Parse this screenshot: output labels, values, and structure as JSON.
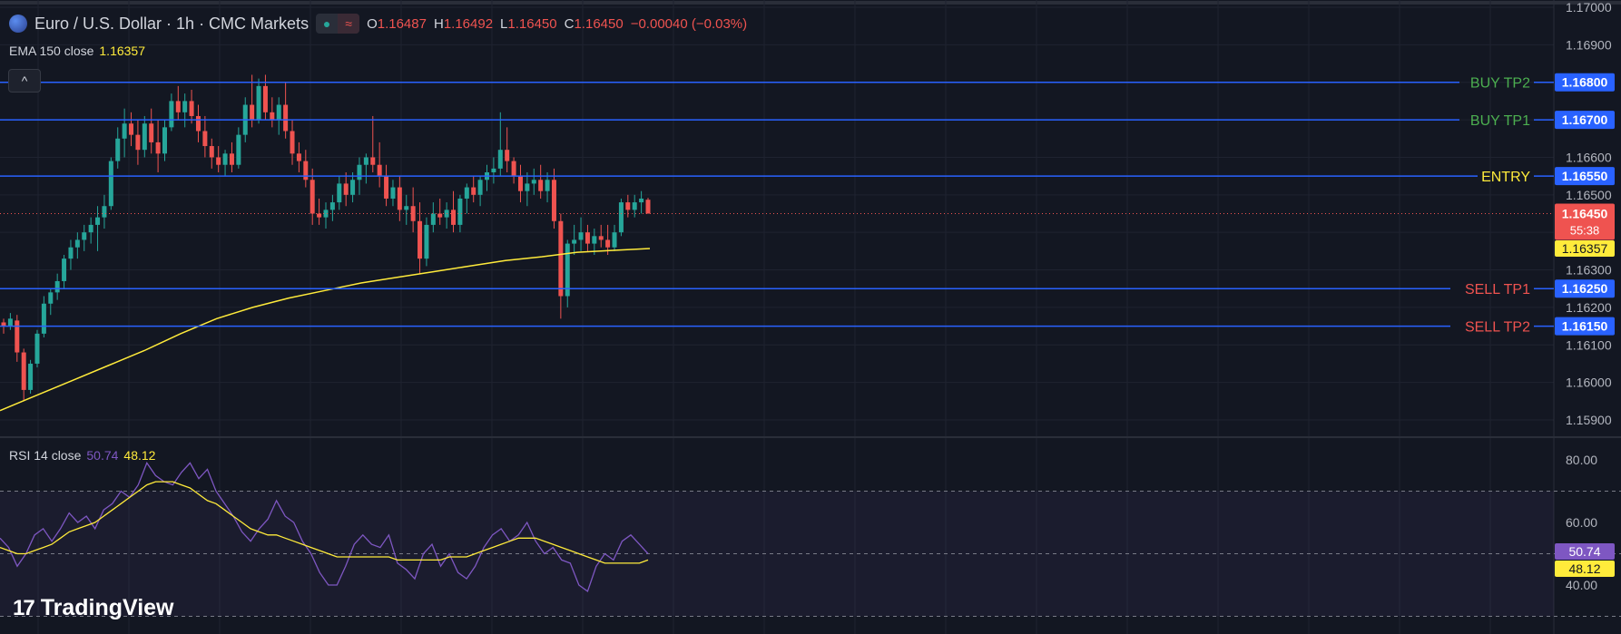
{
  "header": {
    "title": "Euro / U.S. Dollar · 1h · CMC Markets",
    "open_label": "O",
    "open": "1.16487",
    "high_label": "H",
    "high": "1.16492",
    "low_label": "L",
    "low": "1.16450",
    "close_label": "C",
    "close": "1.16450",
    "change": "−0.00040 (−0.03%)"
  },
  "indicators": {
    "ema_label": "EMA 150 close",
    "ema_value": "1.16357",
    "rsi_label": "RSI 14 close",
    "rsi_value": "50.74",
    "rsi_ma_value": "48.12"
  },
  "branding": {
    "logo_text": "TradingView"
  },
  "colors": {
    "background": "#131722",
    "grid": "#1f2330",
    "up": "#26a69a",
    "down": "#ef5350",
    "level_line": "#2962ff",
    "ema": "#ffeb3b",
    "rsi": "#7e57c2",
    "text": "#d1d4dc"
  },
  "chart_data": [
    {
      "type": "candlestick",
      "symbol": "Euro / U.S. Dollar",
      "timeframe": "1h",
      "ylim": [
        1.1585,
        1.17
      ],
      "y_ticks": [
        "1.17000",
        "1.16900",
        "1.16800",
        "1.16700",
        "1.16600",
        "1.16500",
        "1.16400",
        "1.16300",
        "1.16200",
        "1.16100",
        "1.16000",
        "1.15900"
      ],
      "grid": true,
      "ohlc": [
        [
          1.1616,
          1.1617,
          1.1613,
          1.1615
        ],
        [
          1.1615,
          1.16185,
          1.1614,
          1.1617
        ],
        [
          1.16165,
          1.1618,
          1.16055,
          1.1608
        ],
        [
          1.1608,
          1.1609,
          1.1595,
          1.1598
        ],
        [
          1.1598,
          1.1606,
          1.1597,
          1.1605
        ],
        [
          1.1605,
          1.1614,
          1.1604,
          1.1613
        ],
        [
          1.1613,
          1.1623,
          1.1612,
          1.1621
        ],
        [
          1.1621,
          1.1625,
          1.1618,
          1.1624
        ],
        [
          1.1624,
          1.1629,
          1.1622,
          1.1627
        ],
        [
          1.1627,
          1.1634,
          1.1625,
          1.1633
        ],
        [
          1.1633,
          1.1638,
          1.163,
          1.1636
        ],
        [
          1.1636,
          1.164,
          1.1633,
          1.1638
        ],
        [
          1.1638,
          1.1642,
          1.1635,
          1.164
        ],
        [
          1.164,
          1.1644,
          1.1637,
          1.1642
        ],
        [
          1.1642,
          1.1647,
          1.1635,
          1.1644
        ],
        [
          1.1644,
          1.165,
          1.1641,
          1.1647
        ],
        [
          1.1647,
          1.166,
          1.1646,
          1.1659
        ],
        [
          1.1659,
          1.1668,
          1.1657,
          1.1665
        ],
        [
          1.1665,
          1.1673,
          1.166,
          1.1669
        ],
        [
          1.1669,
          1.1672,
          1.1663,
          1.1666
        ],
        [
          1.1666,
          1.167,
          1.1658,
          1.1662
        ],
        [
          1.1662,
          1.1671,
          1.166,
          1.1669
        ],
        [
          1.1669,
          1.1673,
          1.1661,
          1.1664
        ],
        [
          1.1664,
          1.167,
          1.1656,
          1.1661
        ],
        [
          1.1661,
          1.167,
          1.1659,
          1.1668
        ],
        [
          1.1668,
          1.1677,
          1.1667,
          1.1675
        ],
        [
          1.1675,
          1.1679,
          1.167,
          1.1672
        ],
        [
          1.1672,
          1.1677,
          1.1668,
          1.1675
        ],
        [
          1.1675,
          1.1678,
          1.1669,
          1.1671
        ],
        [
          1.1671,
          1.1674,
          1.1664,
          1.1667
        ],
        [
          1.1667,
          1.1671,
          1.166,
          1.1663
        ],
        [
          1.1663,
          1.1665,
          1.1657,
          1.166
        ],
        [
          1.166,
          1.1663,
          1.1656,
          1.1658
        ],
        [
          1.1658,
          1.1662,
          1.1655,
          1.1661
        ],
        [
          1.1661,
          1.1664,
          1.1656,
          1.1658
        ],
        [
          1.1658,
          1.1668,
          1.1657,
          1.1666
        ],
        [
          1.1666,
          1.1676,
          1.1664,
          1.1674
        ],
        [
          1.1674,
          1.1682,
          1.1668,
          1.167
        ],
        [
          1.167,
          1.1681,
          1.1669,
          1.1679
        ],
        [
          1.1679,
          1.1682,
          1.167,
          1.1672
        ],
        [
          1.1672,
          1.1676,
          1.1668,
          1.167
        ],
        [
          1.167,
          1.1676,
          1.1666,
          1.1674
        ],
        [
          1.1674,
          1.168,
          1.1665,
          1.1667
        ],
        [
          1.1667,
          1.167,
          1.1658,
          1.1661
        ],
        [
          1.1661,
          1.1664,
          1.1656,
          1.1659
        ],
        [
          1.1659,
          1.1662,
          1.1652,
          1.1654
        ],
        [
          1.1654,
          1.1657,
          1.1642,
          1.1645
        ],
        [
          1.1645,
          1.1649,
          1.1642,
          1.1644
        ],
        [
          1.1644,
          1.1648,
          1.1641,
          1.1646
        ],
        [
          1.1646,
          1.165,
          1.1643,
          1.1648
        ],
        [
          1.1648,
          1.1655,
          1.1646,
          1.1653
        ],
        [
          1.1653,
          1.1656,
          1.1647,
          1.165
        ],
        [
          1.165,
          1.1656,
          1.1648,
          1.1654
        ],
        [
          1.1654,
          1.166,
          1.165,
          1.1658
        ],
        [
          1.1658,
          1.1661,
          1.1653,
          1.166
        ],
        [
          1.166,
          1.1671,
          1.1656,
          1.1658
        ],
        [
          1.1658,
          1.1664,
          1.1652,
          1.1655
        ],
        [
          1.1655,
          1.1658,
          1.1647,
          1.1649
        ],
        [
          1.1649,
          1.1654,
          1.1647,
          1.1652
        ],
        [
          1.1652,
          1.1655,
          1.1643,
          1.1646
        ],
        [
          1.1646,
          1.165,
          1.1642,
          1.1647
        ],
        [
          1.1647,
          1.1652,
          1.164,
          1.1643
        ],
        [
          1.1643,
          1.1648,
          1.1629,
          1.1633
        ],
        [
          1.1633,
          1.1644,
          1.1631,
          1.1642
        ],
        [
          1.1642,
          1.1648,
          1.164,
          1.1645
        ],
        [
          1.1645,
          1.1649,
          1.1642,
          1.1644
        ],
        [
          1.1644,
          1.1648,
          1.1641,
          1.1646
        ],
        [
          1.1646,
          1.1651,
          1.164,
          1.1642
        ],
        [
          1.1642,
          1.165,
          1.164,
          1.1649
        ],
        [
          1.1649,
          1.1653,
          1.1645,
          1.1652
        ],
        [
          1.1652,
          1.1655,
          1.1648,
          1.165
        ],
        [
          1.165,
          1.1655,
          1.1647,
          1.1654
        ],
        [
          1.1654,
          1.1658,
          1.1651,
          1.1656
        ],
        [
          1.1656,
          1.166,
          1.1653,
          1.1657
        ],
        [
          1.1657,
          1.1672,
          1.1655,
          1.1662
        ],
        [
          1.1662,
          1.1668,
          1.1656,
          1.1659
        ],
        [
          1.1659,
          1.166,
          1.1653,
          1.1655
        ],
        [
          1.1655,
          1.1658,
          1.1648,
          1.1651
        ],
        [
          1.1651,
          1.1656,
          1.1647,
          1.1653
        ],
        [
          1.1653,
          1.1657,
          1.165,
          1.1654
        ],
        [
          1.1654,
          1.1658,
          1.1649,
          1.1651
        ],
        [
          1.1651,
          1.1656,
          1.1648,
          1.1654
        ],
        [
          1.1654,
          1.1657,
          1.1641,
          1.1643
        ],
        [
          1.1643,
          1.1645,
          1.1617,
          1.1623
        ],
        [
          1.1623,
          1.1638,
          1.162,
          1.1637
        ],
        [
          1.1637,
          1.1642,
          1.1634,
          1.1638
        ],
        [
          1.1638,
          1.1644,
          1.1635,
          1.164
        ],
        [
          1.164,
          1.1642,
          1.1635,
          1.1637
        ],
        [
          1.1637,
          1.1641,
          1.1634,
          1.1639
        ],
        [
          1.1639,
          1.1642,
          1.1636,
          1.1638
        ],
        [
          1.1638,
          1.1642,
          1.1634,
          1.1636
        ],
        [
          1.1636,
          1.1642,
          1.1635,
          1.164
        ],
        [
          1.164,
          1.1649,
          1.1639,
          1.1648
        ],
        [
          1.1648,
          1.165,
          1.1644,
          1.1646
        ],
        [
          1.1646,
          1.165,
          1.1644,
          1.1648
        ],
        [
          1.1648,
          1.1651,
          1.1645,
          1.1649
        ],
        [
          1.16487,
          1.16492,
          1.1645,
          1.1645
        ]
      ],
      "ema": {
        "name": "EMA 150 close",
        "y": [
          1.15925,
          1.15965,
          1.16005,
          1.16045,
          1.16085,
          1.1613,
          1.1617,
          1.162,
          1.16225,
          1.16245,
          1.16265,
          1.1628,
          1.16295,
          1.1631,
          1.16325,
          1.16335,
          1.16347,
          1.16352,
          1.16357
        ]
      },
      "current_price": "1.16450",
      "countdown": "55:38",
      "ema_tag": "1.16357",
      "levels": [
        {
          "label": "BUY TP2",
          "price": "1.16800",
          "color": "#4caf50"
        },
        {
          "label": "BUY TP1",
          "price": "1.16700",
          "color": "#4caf50"
        },
        {
          "label": "ENTRY",
          "price": "1.16550",
          "color": "#ffeb3b"
        },
        {
          "label": "SELL TP1",
          "price": "1.16250",
          "color": "#ef5350"
        },
        {
          "label": "SELL TP2",
          "price": "1.16150",
          "color": "#ef5350"
        }
      ]
    },
    {
      "type": "line",
      "ylim": [
        30,
        85
      ],
      "y_ticks": [
        "80.00",
        "60.00",
        "40.00"
      ],
      "bands": [
        70,
        50,
        30
      ],
      "series": [
        {
          "name": "RSI",
          "color": "#7e57c2",
          "values": [
            55,
            52,
            46,
            50,
            56,
            58,
            54,
            58,
            63,
            60,
            62,
            58,
            64,
            66,
            70,
            68,
            72,
            79,
            75,
            73,
            72,
            76,
            79,
            74,
            77,
            70,
            66,
            62,
            57,
            54,
            58,
            61,
            67,
            62,
            60,
            54,
            50,
            44,
            40,
            40,
            46,
            53,
            56,
            53,
            52,
            56,
            47,
            45,
            42,
            50,
            53,
            46,
            50,
            44,
            42,
            46,
            52,
            56,
            58,
            54,
            56,
            60,
            54,
            50,
            52,
            48,
            47,
            40,
            38,
            46,
            50,
            48,
            54,
            56,
            53,
            50
          ]
        },
        {
          "name": "RSI MA",
          "color": "#ffeb3b",
          "values": [
            52,
            51,
            50,
            50,
            51,
            52,
            53,
            55,
            57,
            58,
            59,
            60,
            62,
            64,
            66,
            68,
            70,
            72,
            73,
            73,
            73,
            72,
            71,
            69,
            67,
            66,
            64,
            62,
            60,
            58,
            57,
            56,
            56,
            55,
            54,
            53,
            52,
            51,
            50,
            49,
            49,
            49,
            49,
            49,
            49,
            49,
            48,
            48,
            48,
            48,
            48,
            48,
            49,
            49,
            49,
            50,
            51,
            52,
            53,
            54,
            55,
            55,
            55,
            54,
            53,
            52,
            51,
            50,
            49,
            48,
            47,
            47,
            47,
            47,
            47,
            48
          ]
        }
      ],
      "rsi_tag": "50.74",
      "ma_tag": "48.12"
    }
  ]
}
